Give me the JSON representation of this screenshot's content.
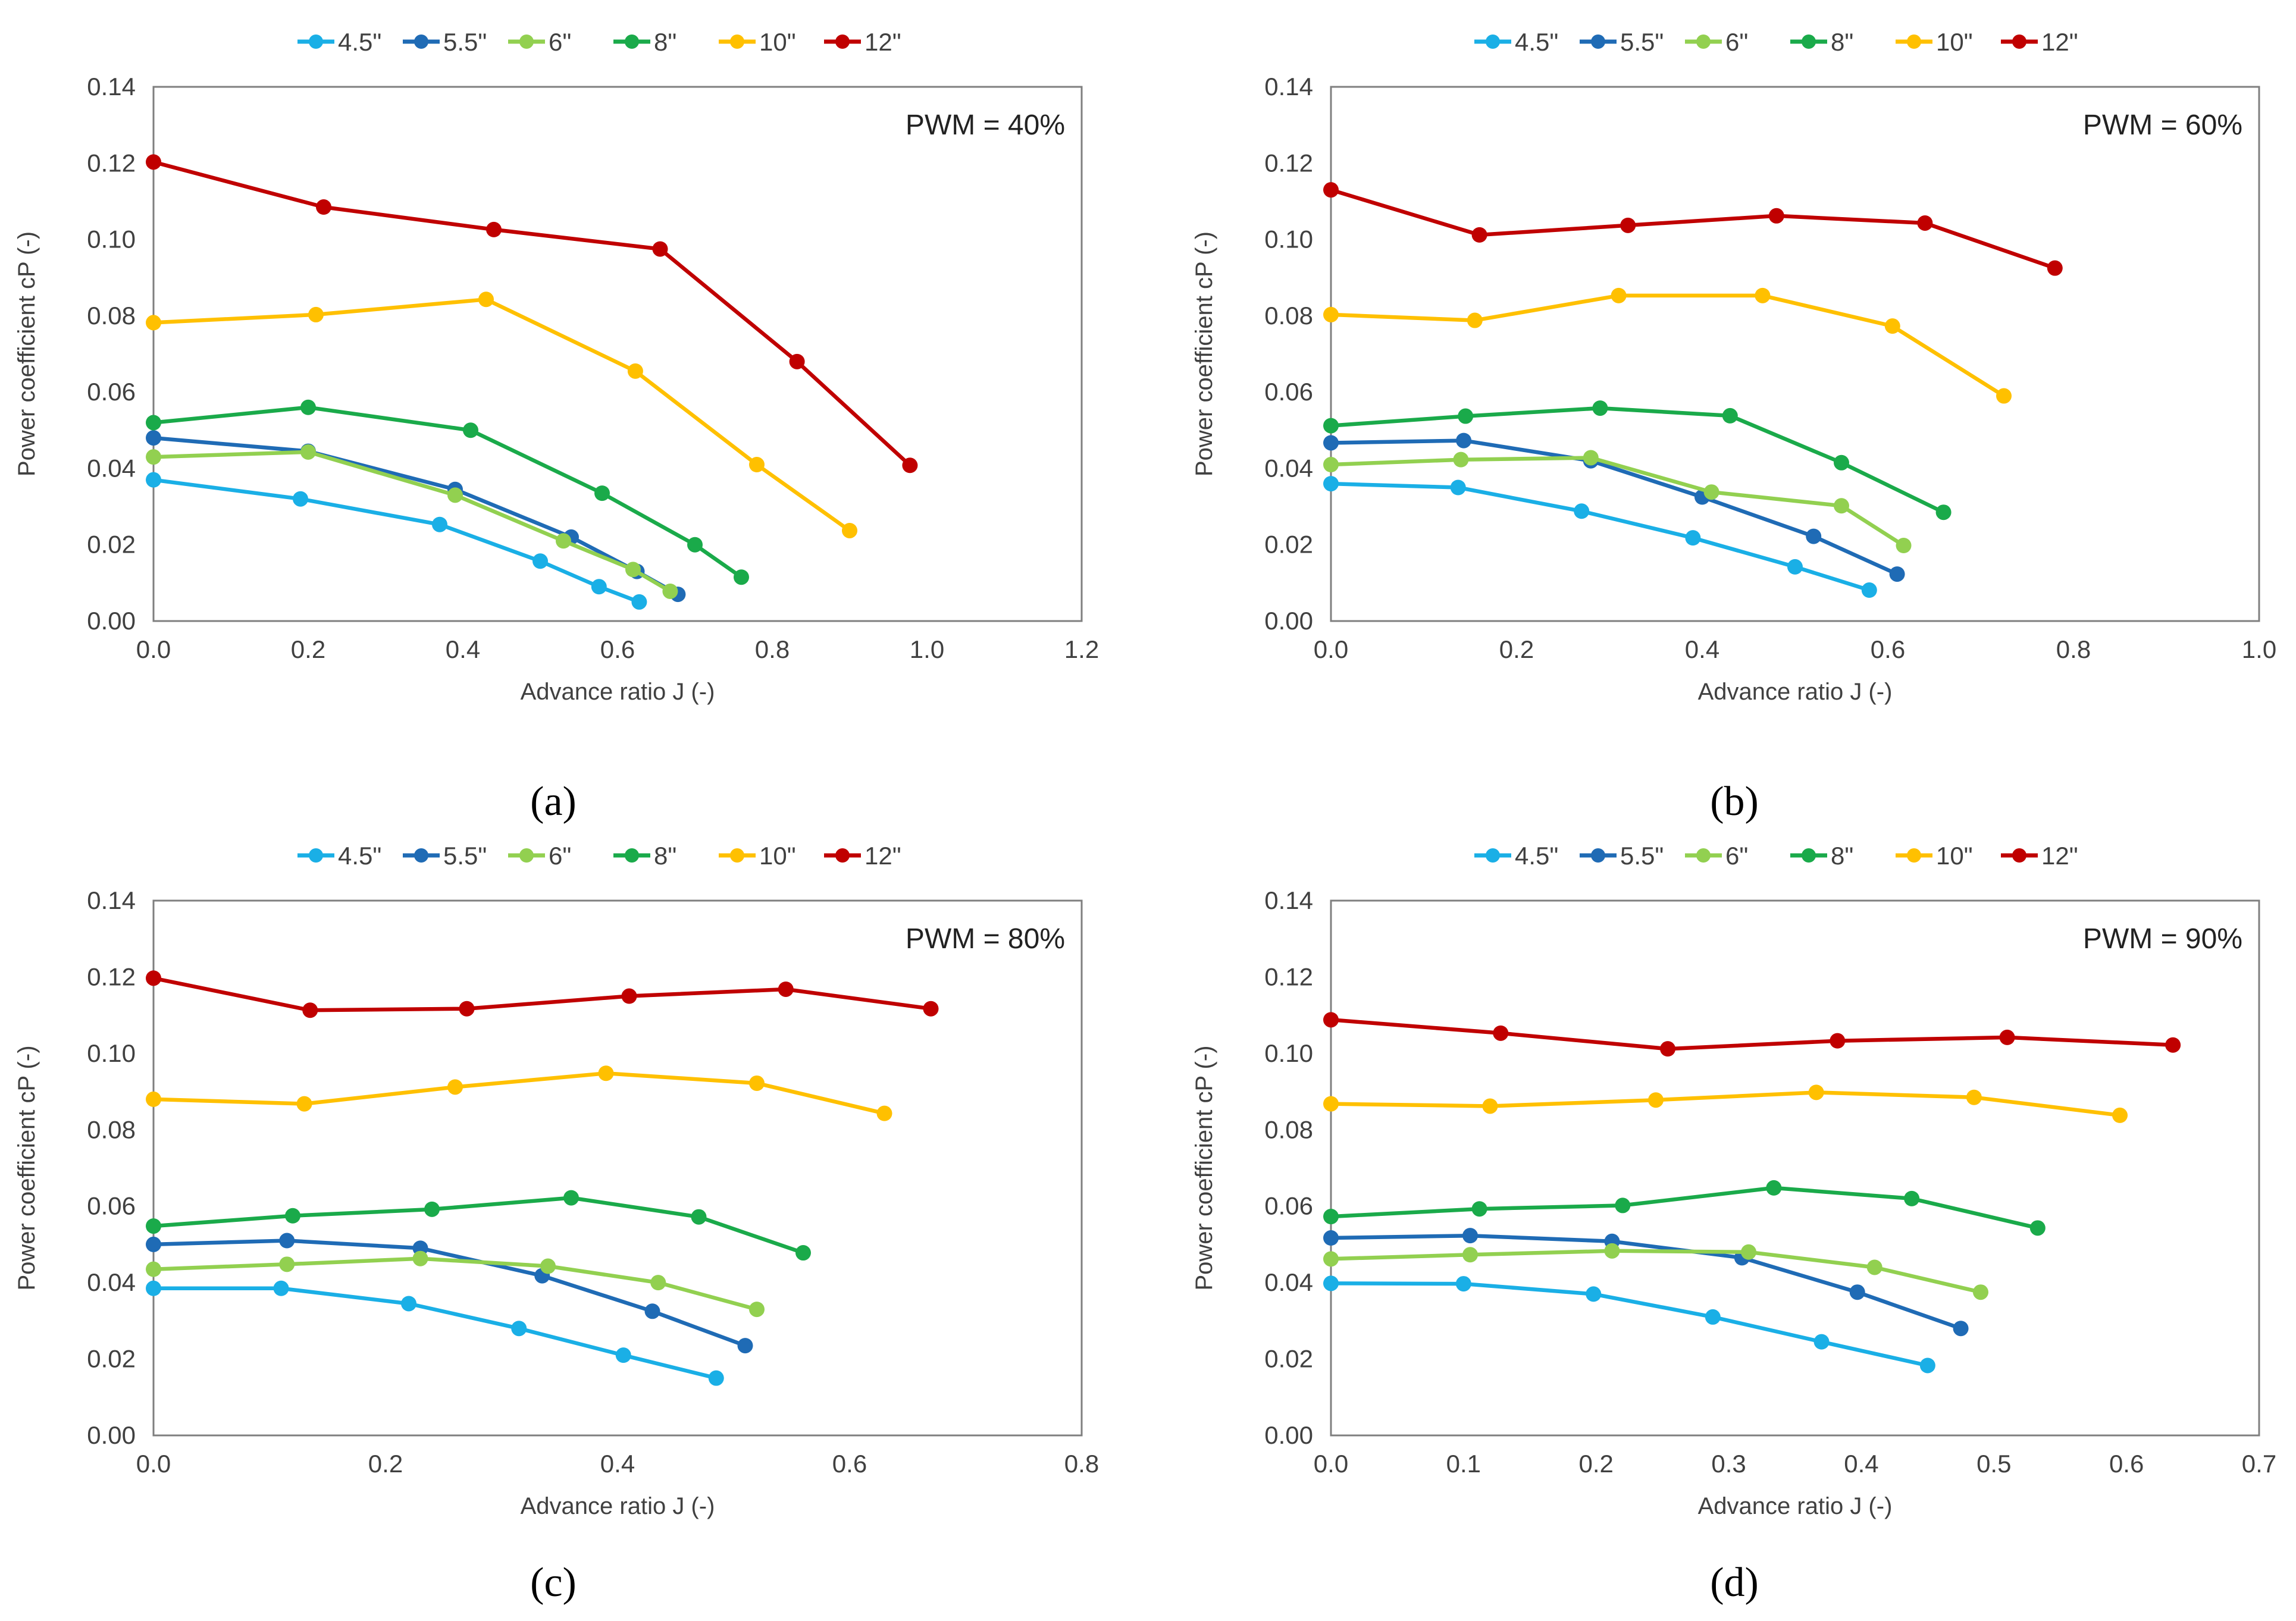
{
  "series_styles": [
    {
      "name": "4.5\"",
      "color": "#1AAFE6"
    },
    {
      "name": "5.5\"",
      "color": "#1F6BB5"
    },
    {
      "name": "6\"",
      "color": "#92D050"
    },
    {
      "name": "8\"",
      "color": "#1AAA4A"
    },
    {
      "name": "10\"",
      "color": "#FFC000"
    },
    {
      "name": "12\"",
      "color": "#C00000"
    }
  ],
  "chart_data": [
    {
      "type": "line",
      "panel_label": "(a)",
      "annotation": "PWM = 40%",
      "xlabel": "Advance ratio J (-)",
      "ylabel": "Power coefficient cP (-)",
      "xlim": [
        0,
        1.2
      ],
      "ylim": [
        0,
        0.14
      ],
      "xticks": [
        "0.0",
        "0.2",
        "0.4",
        "0.6",
        "0.8",
        "1.0",
        "1.2"
      ],
      "yticks": [
        "0.00",
        "0.02",
        "0.04",
        "0.06",
        "0.08",
        "0.10",
        "0.12",
        "0.14"
      ],
      "series": [
        {
          "name": "4.5\"",
          "x": [
            0.0,
            0.19,
            0.37,
            0.5,
            0.576,
            0.628
          ],
          "y": [
            0.037,
            0.032,
            0.0253,
            0.0157,
            0.009,
            0.005
          ]
        },
        {
          "name": "5.5\"",
          "x": [
            0.0,
            0.2,
            0.39,
            0.54,
            0.625,
            0.678
          ],
          "y": [
            0.048,
            0.0445,
            0.0345,
            0.022,
            0.013,
            0.007
          ]
        },
        {
          "name": "6\"",
          "x": [
            0.0,
            0.2,
            0.39,
            0.53,
            0.62,
            0.668
          ],
          "y": [
            0.043,
            0.0443,
            0.033,
            0.021,
            0.0135,
            0.0078
          ]
        },
        {
          "name": "8\"",
          "x": [
            0.0,
            0.2,
            0.41,
            0.58,
            0.7,
            0.76
          ],
          "y": [
            0.052,
            0.056,
            0.05,
            0.0335,
            0.02,
            0.0115
          ]
        },
        {
          "name": "10\"",
          "x": [
            0.0,
            0.21,
            0.43,
            0.623,
            0.78,
            0.9
          ],
          "y": [
            0.0782,
            0.0803,
            0.0843,
            0.0655,
            0.041,
            0.0237
          ]
        },
        {
          "name": "12\"",
          "x": [
            0.0,
            0.22,
            0.44,
            0.655,
            0.832,
            0.978
          ],
          "y": [
            0.1203,
            0.1085,
            0.1026,
            0.0975,
            0.068,
            0.0408
          ]
        }
      ]
    },
    {
      "type": "line",
      "panel_label": "(b)",
      "annotation": "PWM = 60%",
      "xlabel": "Advance ratio J (-)",
      "ylabel": "Power coefficient cP (-)",
      "xlim": [
        0,
        1.0
      ],
      "ylim": [
        0,
        0.14
      ],
      "xticks": [
        "0.0",
        "0.2",
        "0.4",
        "0.6",
        "0.8",
        "1.0"
      ],
      "yticks": [
        "0.00",
        "0.02",
        "0.04",
        "0.06",
        "0.08",
        "0.10",
        "0.12",
        "0.14"
      ],
      "series": [
        {
          "name": "4.5\"",
          "x": [
            0.0,
            0.137,
            0.27,
            0.39,
            0.5,
            0.58
          ],
          "y": [
            0.036,
            0.035,
            0.0288,
            0.0218,
            0.0142,
            0.0081
          ]
        },
        {
          "name": "5.5\"",
          "x": [
            0.0,
            0.143,
            0.28,
            0.4,
            0.52,
            0.61
          ],
          "y": [
            0.0467,
            0.0473,
            0.042,
            0.0325,
            0.0222,
            0.0123
          ]
        },
        {
          "name": "6\"",
          "x": [
            0.0,
            0.14,
            0.28,
            0.41,
            0.55,
            0.617
          ],
          "y": [
            0.041,
            0.0423,
            0.0428,
            0.0338,
            0.0302,
            0.0198
          ]
        },
        {
          "name": "8\"",
          "x": [
            0.0,
            0.145,
            0.29,
            0.43,
            0.55,
            0.66
          ],
          "y": [
            0.0512,
            0.0537,
            0.0558,
            0.0538,
            0.0415,
            0.0285
          ]
        },
        {
          "name": "10\"",
          "x": [
            0.0,
            0.155,
            0.31,
            0.465,
            0.605,
            0.725
          ],
          "y": [
            0.0803,
            0.0788,
            0.0853,
            0.0853,
            0.0773,
            0.059
          ]
        },
        {
          "name": "12\"",
          "x": [
            0.0,
            0.16,
            0.32,
            0.48,
            0.64,
            0.78
          ],
          "y": [
            0.113,
            0.1012,
            0.1037,
            0.1062,
            0.1043,
            0.0925
          ]
        }
      ]
    },
    {
      "type": "line",
      "panel_label": "(c)",
      "annotation": "PWM = 80%",
      "xlabel": "Advance ratio J (-)",
      "ylabel": "Power coefficient cP (-)",
      "xlim": [
        0,
        0.8
      ],
      "ylim": [
        0,
        0.14
      ],
      "xticks": [
        "0.0",
        "0.2",
        "0.4",
        "0.6",
        "0.8"
      ],
      "yticks": [
        "0.00",
        "0.02",
        "0.04",
        "0.06",
        "0.08",
        "0.10",
        "0.12",
        "0.14"
      ],
      "series": [
        {
          "name": "4.5\"",
          "x": [
            0.0,
            0.11,
            0.22,
            0.315,
            0.405,
            0.485
          ],
          "y": [
            0.0385,
            0.0385,
            0.0345,
            0.028,
            0.021,
            0.015
          ]
        },
        {
          "name": "5.5\"",
          "x": [
            0.0,
            0.115,
            0.23,
            0.335,
            0.43,
            0.51
          ],
          "y": [
            0.05,
            0.051,
            0.049,
            0.0418,
            0.0325,
            0.0235
          ]
        },
        {
          "name": "6\"",
          "x": [
            0.0,
            0.115,
            0.23,
            0.34,
            0.435,
            0.52
          ],
          "y": [
            0.0435,
            0.0448,
            0.0463,
            0.0443,
            0.04,
            0.033
          ]
        },
        {
          "name": "8\"",
          "x": [
            0.0,
            0.12,
            0.24,
            0.36,
            0.47,
            0.56
          ],
          "y": [
            0.0548,
            0.0575,
            0.0592,
            0.0622,
            0.0572,
            0.0478
          ]
        },
        {
          "name": "10\"",
          "x": [
            0.0,
            0.13,
            0.26,
            0.39,
            0.52,
            0.63
          ],
          "y": [
            0.088,
            0.0868,
            0.0912,
            0.0948,
            0.0922,
            0.0843
          ]
        },
        {
          "name": "12\"",
          "x": [
            0.0,
            0.135,
            0.27,
            0.41,
            0.545,
            0.67
          ],
          "y": [
            0.1197,
            0.1113,
            0.1117,
            0.115,
            0.1168,
            0.1117
          ]
        }
      ]
    },
    {
      "type": "line",
      "panel_label": "(d)",
      "annotation": "PWM = 90%",
      "xlabel": "Advance ratio J (-)",
      "ylabel": "Power coefficient cP (-)",
      "xlim": [
        0,
        0.7
      ],
      "ylim": [
        0,
        0.14
      ],
      "xticks": [
        "0.0",
        "0.1",
        "0.2",
        "0.3",
        "0.4",
        "0.5",
        "0.6",
        "0.7"
      ],
      "yticks": [
        "0.00",
        "0.02",
        "0.04",
        "0.06",
        "0.08",
        "0.10",
        "0.12",
        "0.14"
      ],
      "series": [
        {
          "name": "4.5\"",
          "x": [
            0.0,
            0.1,
            0.198,
            0.288,
            0.37,
            0.45
          ],
          "y": [
            0.0398,
            0.0397,
            0.037,
            0.031,
            0.0245,
            0.0183
          ]
        },
        {
          "name": "5.5\"",
          "x": [
            0.0,
            0.105,
            0.212,
            0.31,
            0.397,
            0.475
          ],
          "y": [
            0.0517,
            0.0523,
            0.0508,
            0.0465,
            0.0375,
            0.028
          ]
        },
        {
          "name": "6\"",
          "x": [
            0.0,
            0.105,
            0.212,
            0.315,
            0.41,
            0.49
          ],
          "y": [
            0.0462,
            0.0473,
            0.0483,
            0.048,
            0.044,
            0.0375
          ]
        },
        {
          "name": "8\"",
          "x": [
            0.0,
            0.112,
            0.22,
            0.334,
            0.438,
            0.533
          ],
          "y": [
            0.0573,
            0.0593,
            0.0602,
            0.0648,
            0.062,
            0.0543
          ]
        },
        {
          "name": "10\"",
          "x": [
            0.0,
            0.12,
            0.245,
            0.366,
            0.485,
            0.595
          ],
          "y": [
            0.0868,
            0.0862,
            0.0878,
            0.0898,
            0.0885,
            0.0838
          ]
        },
        {
          "name": "12\"",
          "x": [
            0.0,
            0.128,
            0.254,
            0.382,
            0.51,
            0.635
          ],
          "y": [
            0.1088,
            0.1053,
            0.1012,
            0.1033,
            0.1042,
            0.1022
          ]
        }
      ]
    }
  ]
}
